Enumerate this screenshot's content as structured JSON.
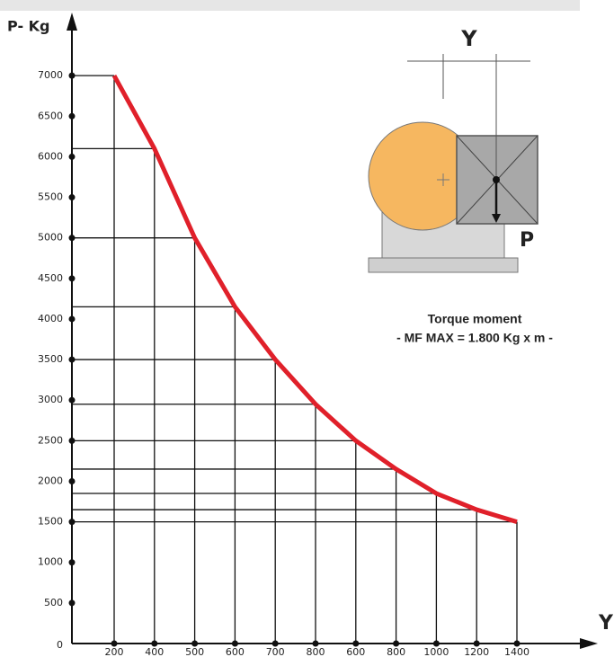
{
  "chart_data": {
    "type": "line",
    "y_axis_label": "P- Kg",
    "x_axis_label": "Y",
    "categories": [
      "200",
      "400",
      "500",
      "600",
      "700",
      "800",
      "600",
      "800",
      "1000",
      "1200",
      "1400"
    ],
    "values": [
      7000,
      6100,
      5000,
      4150,
      3500,
      2950,
      2500,
      2150,
      1850,
      1650,
      1500
    ],
    "color": "#e0202a",
    "ylim": [
      0,
      7600
    ],
    "yticks": [
      0,
      500,
      1000,
      1500,
      2000,
      2500,
      3000,
      3500,
      4000,
      4500,
      5000,
      5500,
      6000,
      6500,
      7000
    ],
    "grid": true,
    "annotations": [
      "Y",
      "P",
      "Torque moment",
      "- MF MAX = 1.800 Kg x m -"
    ]
  }
}
